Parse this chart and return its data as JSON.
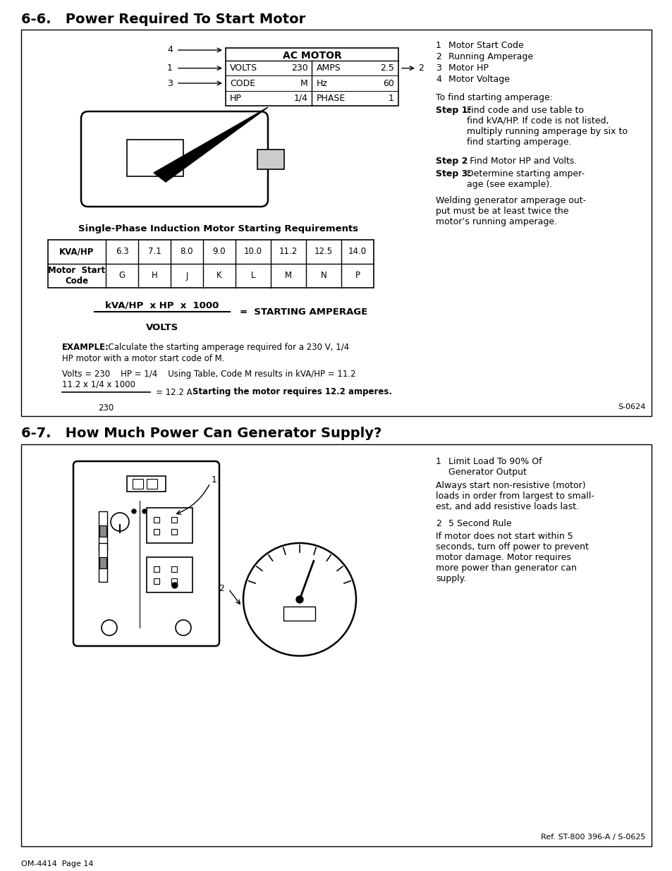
{
  "page_title_1": "6-6.   Power Required To Start Motor",
  "page_title_2": "6-7.   How Much Power Can Generator Supply?",
  "page_footer": "OM-4414  Page 14",
  "section1": {
    "right_labels_num": [
      "1",
      "2",
      "3",
      "4"
    ],
    "right_labels_text": [
      "Motor Start Code",
      "Running Amperage",
      "Motor HP",
      "Motor Voltage"
    ],
    "motor_label": "AC MOTOR",
    "motor_rows": [
      [
        "VOLTS",
        "230",
        "AMPS",
        "2.5"
      ],
      [
        "CODE",
        "M",
        "Hz",
        "60"
      ],
      [
        "HP",
        "1/4",
        "PHASE",
        "1"
      ]
    ],
    "table_title": "Single-Phase Induction Motor Starting Requirements",
    "table_headers": [
      "Motor  Start\nCode",
      "G",
      "H",
      "J",
      "K",
      "L",
      "M",
      "N",
      "P"
    ],
    "table_kva": [
      "KVA/HP",
      "6.3",
      "7.1",
      "8.0",
      "9.0",
      "10.0",
      "11.2",
      "12.5",
      "14.0"
    ],
    "formula_num": "kVA/HP  x HP  x  1000",
    "formula_den": "VOLTS",
    "formula_eq": "=  STARTING AMPERAGE",
    "example_bold": "EXAMPLE:",
    "example_rest": "  Calculate the starting amperage required for a 230 V, 1/4",
    "example_line2": "HP motor with a motor start code of M.",
    "calc_line1": "Volts = 230    HP = 1/4    Using Table, Code M results in kVA/HP = 11.2",
    "calc_num": "11.2 x 1/4 x 1000",
    "calc_den": "230",
    "calc_eq": "= 12.2 A",
    "calc_bold": "Starting the motor requires 12.2 amperes.",
    "ref1": "S-0624"
  },
  "section2": {
    "label1_num": "1",
    "label1_text": "Limit Load To 90% Of\nGenerator Output",
    "text1": "Always start non-resistive (motor)\nloads in order from largest to small-\nest, and add resistive loads last.",
    "label2_num": "2",
    "label2_text": "5 Second Rule",
    "text2": "If motor does not start within 5\nseconds, turn off power to prevent\nmotor damage. Motor requires\nmore power than generator can\nsupply.",
    "ref2": "Ref. ST-800 396-A / S-0625"
  }
}
